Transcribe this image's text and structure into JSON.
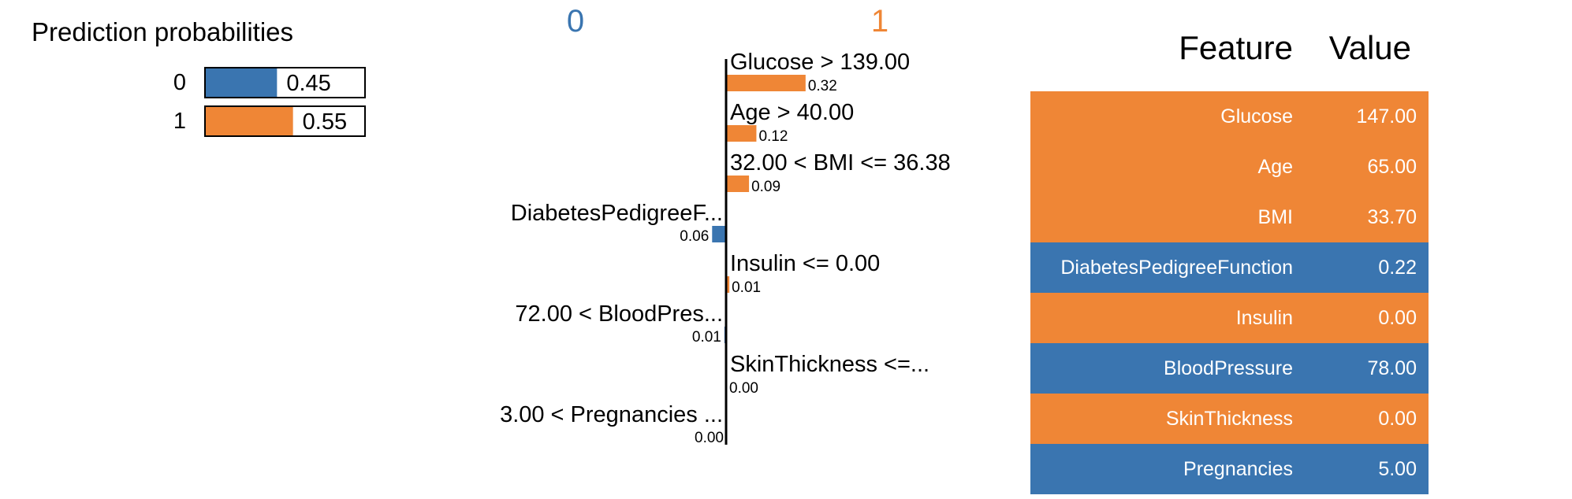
{
  "colors": {
    "class0": "#3a75b0",
    "class1": "#ef8636",
    "text_light": "#ffffff"
  },
  "chart_data": [
    {
      "type": "bar",
      "title": "Prediction probabilities",
      "categories": [
        "0",
        "1"
      ],
      "values": [
        0.45,
        0.55
      ],
      "value_labels": [
        "0.45",
        "0.55"
      ],
      "xlim": [
        0,
        1
      ]
    },
    {
      "type": "bar",
      "orientation": "horizontal",
      "class_labels": [
        "0",
        "1"
      ],
      "categories": [
        "Glucose > 139.00",
        "Age > 40.00",
        "32.00 < BMI <= 36.38",
        "DiabetesPedigreeF...",
        "Insulin <= 0.00",
        "72.00 < BloodPres...",
        "SkinThickness <=...",
        "3.00 < Pregnancies ..."
      ],
      "values": [
        0.32,
        0.12,
        0.09,
        -0.06,
        0.01,
        -0.01,
        0.0,
        0.0
      ],
      "value_labels": [
        "0.32",
        "0.12",
        "0.09",
        "0.06",
        "0.01",
        "0.01",
        "0.00",
        "0.00"
      ],
      "direction": [
        "1",
        "1",
        "1",
        "0",
        "1",
        "0",
        "1",
        "0"
      ]
    },
    {
      "type": "table",
      "columns": [
        "Feature",
        "Value"
      ],
      "rows": [
        {
          "feature": "Glucose",
          "value": "147.00",
          "class": "1"
        },
        {
          "feature": "Age",
          "value": "65.00",
          "class": "1"
        },
        {
          "feature": "BMI",
          "value": "33.70",
          "class": "1"
        },
        {
          "feature": "DiabetesPedigreeFunction",
          "value": "0.22",
          "class": "0"
        },
        {
          "feature": "Insulin",
          "value": "0.00",
          "class": "1"
        },
        {
          "feature": "BloodPressure",
          "value": "78.00",
          "class": "0"
        },
        {
          "feature": "SkinThickness",
          "value": "0.00",
          "class": "1"
        },
        {
          "feature": "Pregnancies",
          "value": "5.00",
          "class": "0"
        }
      ]
    }
  ]
}
